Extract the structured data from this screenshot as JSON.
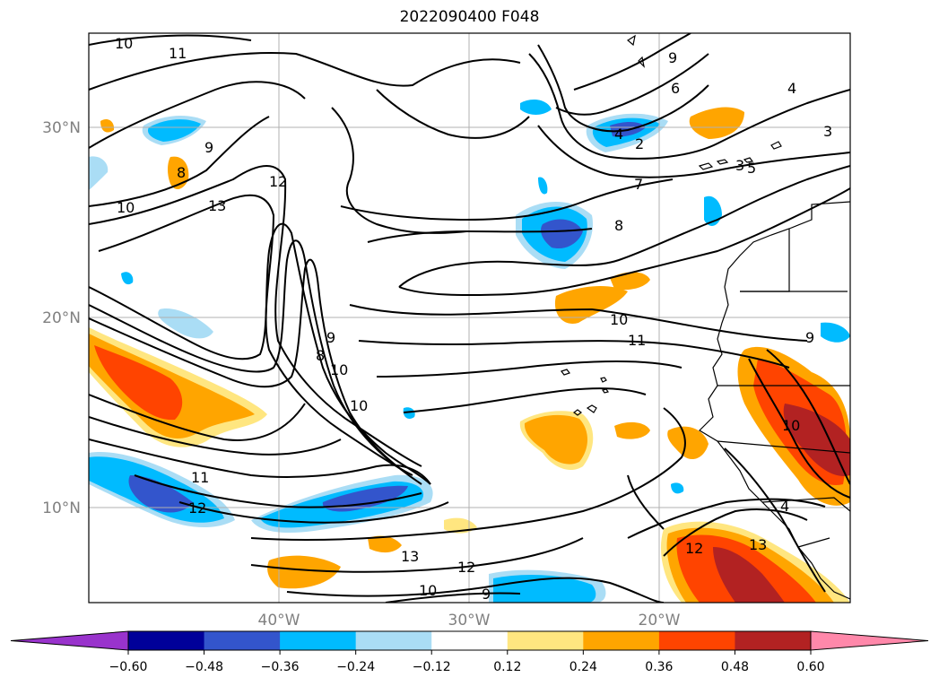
{
  "title": "2022090400 F048",
  "map": {
    "lat_labels": [
      "30°N",
      "20°N",
      "10°N"
    ],
    "lon_labels": [
      "40°W",
      "30°W",
      "20°W"
    ],
    "grid": true,
    "contour_labels": [
      "10",
      "11",
      "13",
      "12",
      "10",
      "9",
      "8",
      "8",
      "7",
      "6",
      "5",
      "4",
      "3",
      "2",
      "4",
      "3",
      "9",
      "10",
      "11",
      "9",
      "8",
      "10",
      "10",
      "11",
      "12",
      "13",
      "12",
      "10",
      "9",
      "13",
      "12",
      "10",
      "4",
      "9"
    ]
  },
  "colorbar": {
    "ticks": [
      "−0.60",
      "−0.48",
      "−0.36",
      "−0.24",
      "−0.12",
      "0.12",
      "0.24",
      "0.36",
      "0.48",
      "0.60"
    ],
    "colors": {
      "under": "#9933cc",
      "bins": [
        "#000099",
        "#3355cc",
        "#00bbff",
        "#aaddf5",
        "#ffffff",
        "#ffe680",
        "#ffa500",
        "#ff4400",
        "#b22222"
      ],
      "over": "#ff88aa"
    }
  }
}
